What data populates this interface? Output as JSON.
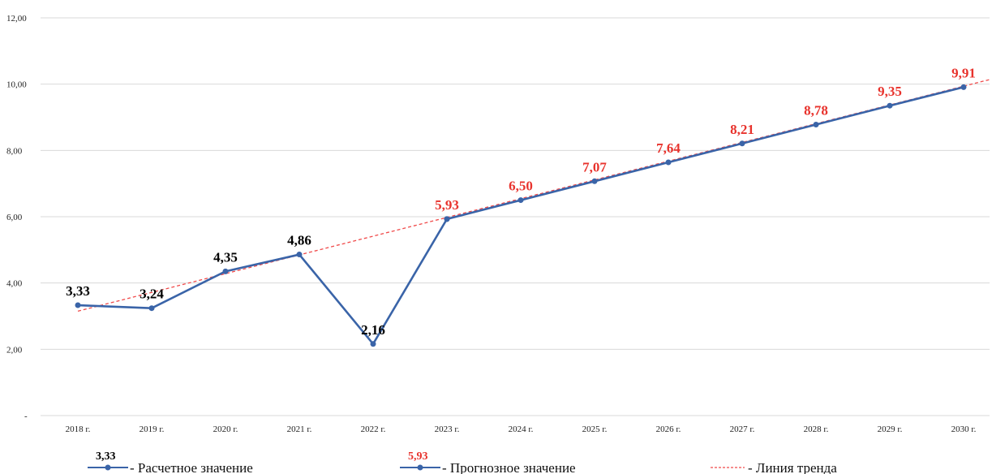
{
  "chart_data": {
    "type": "line",
    "categories": [
      "2018 г.",
      "2019 г.",
      "2020 г.",
      "2021 г.",
      "2022 г.",
      "2023 г.",
      "2024 г.",
      "2025 г.",
      "2026 г.",
      "2027 г.",
      "2028 г.",
      "2029 г.",
      "2030 г."
    ],
    "series": [
      {
        "name": "Расчетное значение",
        "values": [
          3.33,
          3.24,
          4.35,
          4.86,
          2.16,
          5.93,
          null,
          null,
          null,
          null,
          null,
          null,
          null
        ],
        "labels": [
          "3,33",
          "3,24",
          "4,35",
          "4,86",
          "2,16",
          null,
          null,
          null,
          null,
          null,
          null,
          null,
          null
        ],
        "line_color": "#3a64a8",
        "label_color": "#000000"
      },
      {
        "name": "Прогнозное значение",
        "values": [
          null,
          null,
          null,
          null,
          null,
          5.93,
          6.5,
          7.07,
          7.64,
          8.21,
          8.78,
          9.35,
          9.91
        ],
        "labels": [
          null,
          null,
          null,
          null,
          null,
          "5,93",
          "6,50",
          "7,07",
          "7,64",
          "8,21",
          "8,78",
          "9,35",
          "9,91"
        ],
        "line_color": "#3a64a8",
        "label_color": "#e8332d"
      },
      {
        "name": "Линия тренда",
        "style": "dashed",
        "color": "#f04a4a",
        "trend_start": 3.15,
        "trend_end": 10.15
      }
    ],
    "y_ticks": [
      "-",
      "2,00",
      "4,00",
      "6,00",
      "8,00",
      "10,00",
      "12,00"
    ],
    "ylim": [
      0,
      12
    ],
    "grid": true,
    "legend_position": "bottom"
  },
  "legend": [
    {
      "sample": "3,33",
      "sample_color": "#000000",
      "text": "- Расчетное значение"
    },
    {
      "sample": "5,93",
      "sample_color": "#e8332d",
      "text": "- Прогнозное значение"
    },
    {
      "sample": "",
      "sample_color": "#f04a4a",
      "text": "- Линия тренда"
    }
  ]
}
